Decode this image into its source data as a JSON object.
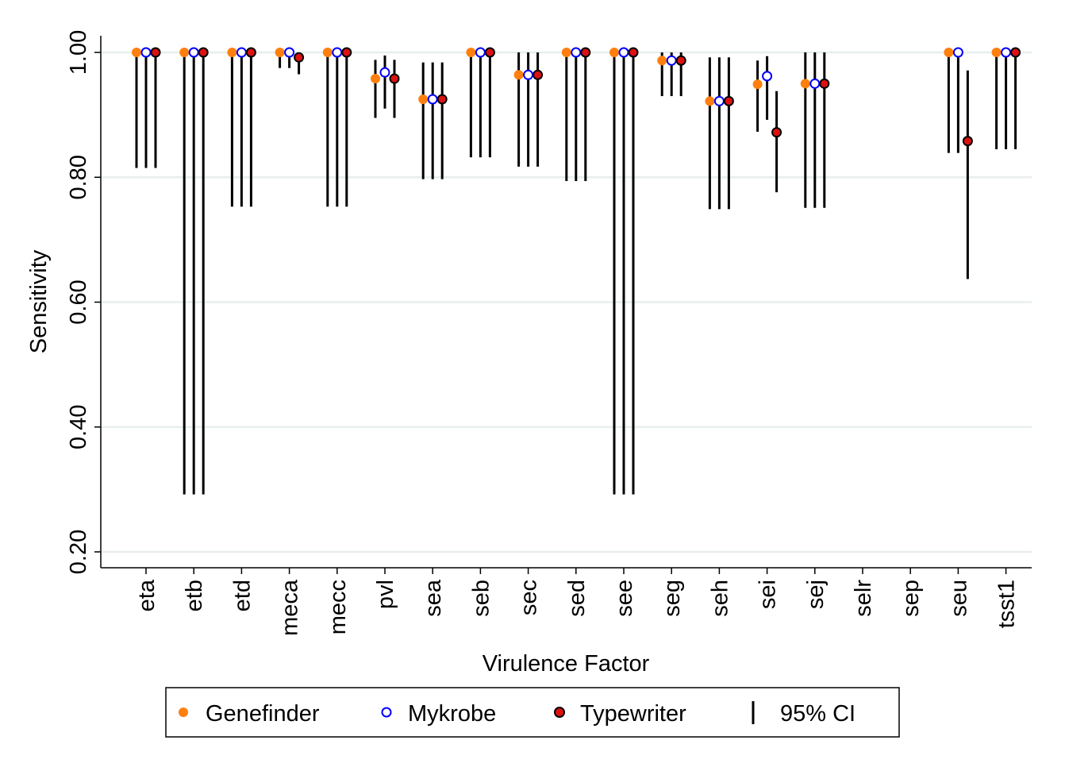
{
  "chart_data": {
    "type": "scatter",
    "xlabel": "Virulence Factor",
    "ylabel": "Sensitivity",
    "ylim": [
      0.175,
      1.02
    ],
    "yticks": [
      0.2,
      0.4,
      0.6,
      0.8,
      1.0
    ],
    "ytick_labels": [
      "0.20",
      "0.40",
      "0.60",
      "0.80",
      "1.00"
    ],
    "grid": true,
    "legend_position": "bottom",
    "categories": [
      "eta",
      "etb",
      "etd",
      "meca",
      "mecc",
      "pvl",
      "sea",
      "seb",
      "sec",
      "sed",
      "see",
      "seg",
      "seh",
      "sei",
      "sej",
      "selr",
      "sep",
      "seu",
      "tsst1"
    ],
    "series": [
      {
        "name": "Genefinder",
        "marker": "filled-circle",
        "color": "#ff7f0e",
        "values": [
          1.0,
          1.0,
          1.0,
          1.0,
          1.0,
          0.958,
          0.925,
          1.0,
          0.964,
          1.0,
          1.0,
          0.987,
          0.922,
          0.949,
          0.95,
          null,
          null,
          1.0,
          1.0
        ],
        "ci_lower": [
          0.815,
          0.292,
          0.753,
          0.975,
          0.753,
          0.895,
          0.797,
          0.832,
          0.817,
          0.794,
          0.292,
          0.93,
          0.749,
          0.873,
          0.751,
          null,
          null,
          0.839,
          0.845
        ],
        "ci_upper": [
          1.0,
          1.0,
          1.0,
          1.0,
          1.0,
          0.988,
          0.984,
          1.0,
          1.0,
          1.0,
          1.0,
          1.0,
          0.992,
          0.987,
          1.0,
          null,
          null,
          1.0,
          1.0
        ]
      },
      {
        "name": "Mykrobe",
        "marker": "hollow-circle",
        "color": "#0000ff",
        "values": [
          1.0,
          1.0,
          1.0,
          1.0,
          1.0,
          0.968,
          0.925,
          1.0,
          0.964,
          1.0,
          1.0,
          0.987,
          0.922,
          0.962,
          0.95,
          null,
          null,
          1.0,
          1.0
        ],
        "ci_lower": [
          0.815,
          0.292,
          0.753,
          0.975,
          0.753,
          0.91,
          0.797,
          0.832,
          0.817,
          0.794,
          0.292,
          0.93,
          0.749,
          0.892,
          0.751,
          null,
          null,
          0.839,
          0.845
        ],
        "ci_upper": [
          1.0,
          1.0,
          1.0,
          1.0,
          1.0,
          0.995,
          0.984,
          1.0,
          1.0,
          1.0,
          1.0,
          1.0,
          0.992,
          0.994,
          1.0,
          null,
          null,
          1.0,
          1.0
        ]
      },
      {
        "name": "Typewriter",
        "marker": "red-circle-black-edge",
        "color": "#dd1111",
        "values": [
          1.0,
          1.0,
          1.0,
          0.992,
          1.0,
          0.958,
          0.925,
          1.0,
          0.964,
          1.0,
          1.0,
          0.987,
          0.922,
          0.872,
          0.95,
          null,
          null,
          0.858,
          1.0
        ],
        "ci_lower": [
          0.815,
          0.292,
          0.753,
          0.965,
          0.753,
          0.895,
          0.797,
          0.832,
          0.817,
          0.794,
          0.292,
          0.93,
          0.749,
          0.776,
          0.751,
          null,
          null,
          0.637,
          0.845
        ],
        "ci_upper": [
          1.0,
          1.0,
          1.0,
          1.0,
          1.0,
          0.988,
          0.984,
          1.0,
          1.0,
          1.0,
          1.0,
          1.0,
          0.992,
          0.938,
          1.0,
          null,
          null,
          0.971,
          1.0
        ]
      }
    ],
    "legend": [
      {
        "label": "Genefinder",
        "symbol": "genefinder"
      },
      {
        "label": "Mykrobe",
        "symbol": "mykrobe"
      },
      {
        "label": "Typewriter",
        "symbol": "typewriter"
      },
      {
        "label": "95% CI",
        "symbol": "ci"
      }
    ]
  }
}
